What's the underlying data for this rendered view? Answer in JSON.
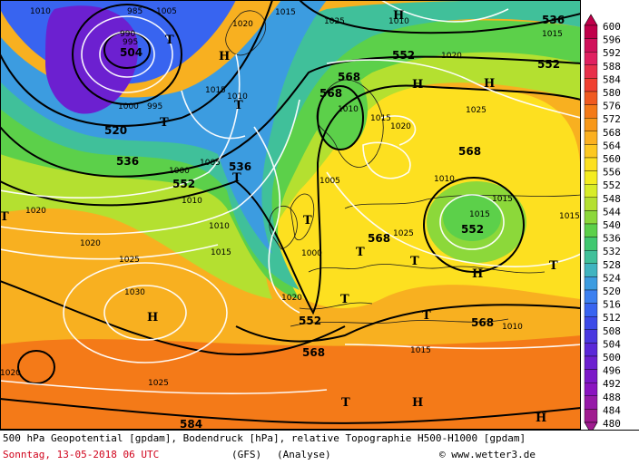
{
  "caption": {
    "line1": "500 hPa Geopotential [gpdam], Bodendruck [hPa], relative Topographie H500-H1000 [gpdam]",
    "date": "Sonntag, 13-05-2018  06 UTC",
    "model": "(GFS)",
    "analysis": "(Analyse)",
    "copyright": "© www.wetter3.de"
  },
  "scale": {
    "values": [
      "600",
      "596",
      "592",
      "588",
      "584",
      "580",
      "576",
      "572",
      "568",
      "564",
      "560",
      "556",
      "552",
      "548",
      "544",
      "540",
      "536",
      "532",
      "528",
      "524",
      "520",
      "516",
      "512",
      "508",
      "504",
      "500",
      "496",
      "492",
      "488",
      "484",
      "480"
    ],
    "colors": [
      "#c0004a",
      "#d0105a",
      "#e02060",
      "#e8304a",
      "#f04030",
      "#f05a20",
      "#f47a18",
      "#f89818",
      "#fbb020",
      "#fdc820",
      "#fde020",
      "#f4ec20",
      "#d8ec28",
      "#b4e030",
      "#8cd83a",
      "#5cd04a",
      "#40c870",
      "#40c09a",
      "#40b4c0",
      "#3c9ce0",
      "#3c80f0",
      "#3864f0",
      "#3c4ae8",
      "#4a38e0",
      "#5a28d8",
      "#6c20d0",
      "#7c18c8",
      "#8a14c0",
      "#961aa8",
      "#a01c90",
      "#a01c90"
    ]
  },
  "map": {
    "geopotential_labels": [
      "504",
      "520",
      "536",
      "552",
      "536",
      "568",
      "568",
      "552",
      "536",
      "552",
      "568",
      "552",
      "568",
      "568",
      "552",
      "568",
      "584"
    ],
    "pressure_labels": [
      "1010",
      "1005",
      "1020",
      "1015",
      "985",
      "990",
      "995",
      "1000",
      "995",
      "1010",
      "1015",
      "1000",
      "1005",
      "1010",
      "1020",
      "1025",
      "1030",
      "1025",
      "1020",
      "1015",
      "1010",
      "1020",
      "1000",
      "1005",
      "1010",
      "1015",
      "1020",
      "1025",
      "1025",
      "1015",
      "1015",
      "1010",
      "1015",
      "1010",
      "1015",
      "1020",
      "1025",
      "1010",
      "1015",
      "1020"
    ],
    "high_labels": [
      "H",
      "H",
      "H",
      "H",
      "H",
      "H",
      "H",
      "H"
    ],
    "low_labels": [
      "T",
      "T",
      "T",
      "T",
      "T",
      "T",
      "T",
      "T",
      "T",
      "T",
      "T",
      "T"
    ]
  }
}
